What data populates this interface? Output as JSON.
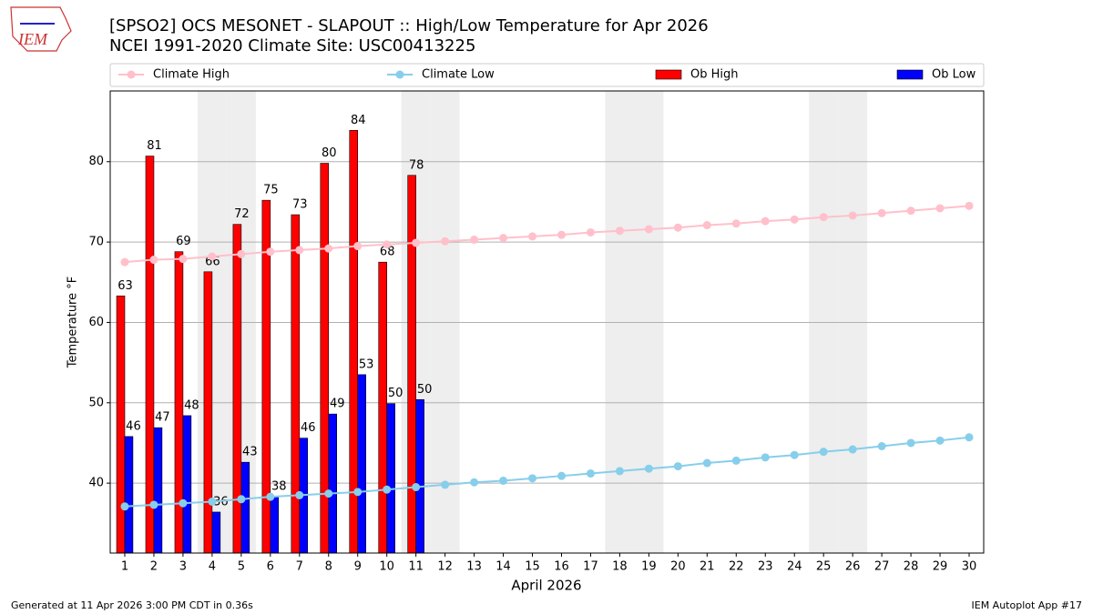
{
  "chart_data": {
    "type": "bar",
    "title": "[SPSO2] OCS MESONET - SLAPOUT :: High/Low Temperature for Apr 2026",
    "subtitle": "NCEI 1991-2020 Climate Site: USC00413225",
    "xlabel": "April 2026",
    "ylabel": "Temperature °F",
    "footer_left": "Generated at 11 Apr 2026 3:00 PM CDT in 0.36s",
    "footer_right": "IEM Autoplot App #17",
    "logo": "IEM",
    "x": [
      1,
      2,
      3,
      4,
      5,
      6,
      7,
      8,
      9,
      10,
      11,
      12,
      13,
      14,
      15,
      16,
      17,
      18,
      19,
      20,
      21,
      22,
      23,
      24,
      25,
      26,
      27,
      28,
      29,
      30
    ],
    "xlim": [
      0.5,
      30.5
    ],
    "xticks": [
      1,
      2,
      3,
      4,
      5,
      6,
      7,
      8,
      9,
      10,
      11,
      12,
      13,
      14,
      15,
      16,
      17,
      18,
      19,
      20,
      21,
      22,
      23,
      24,
      25,
      26,
      27,
      28,
      29,
      30
    ],
    "ylim": [
      31.3,
      88.8
    ],
    "yticks": [
      40,
      50,
      60,
      70,
      80
    ],
    "grid": true,
    "highlight_days": [
      4,
      5,
      11,
      12,
      18,
      19,
      25,
      26
    ],
    "series": [
      {
        "name": "Climate High",
        "type": "line",
        "color": "#ffc0cb",
        "values": [
          67.5,
          67.8,
          67.9,
          68.2,
          68.5,
          68.8,
          69.0,
          69.2,
          69.5,
          69.7,
          69.9,
          70.1,
          70.3,
          70.5,
          70.7,
          70.9,
          71.2,
          71.4,
          71.6,
          71.8,
          72.1,
          72.3,
          72.6,
          72.8,
          73.1,
          73.3,
          73.6,
          73.9,
          74.2,
          74.5
        ]
      },
      {
        "name": "Climate Low",
        "type": "line",
        "color": "#87ceeb",
        "values": [
          37.1,
          37.3,
          37.5,
          37.7,
          38.0,
          38.3,
          38.5,
          38.7,
          38.9,
          39.2,
          39.5,
          39.8,
          40.1,
          40.3,
          40.6,
          40.9,
          41.2,
          41.5,
          41.8,
          42.1,
          42.5,
          42.8,
          43.2,
          43.5,
          43.9,
          44.2,
          44.6,
          45.0,
          45.3,
          45.7
        ]
      },
      {
        "name": "Ob High",
        "type": "bar",
        "color": "#ff0000",
        "values": [
          63.3,
          80.7,
          68.8,
          66.3,
          72.2,
          75.2,
          73.4,
          79.8,
          83.9,
          67.5,
          78.3,
          null,
          null,
          null,
          null,
          null,
          null,
          null,
          null,
          null,
          null,
          null,
          null,
          null,
          null,
          null,
          null,
          null,
          null,
          null
        ],
        "value_labels": [
          "63",
          "81",
          "69",
          "66",
          "72",
          "75",
          "73",
          "80",
          "84",
          "68",
          "78",
          null,
          null,
          null,
          null,
          null,
          null,
          null,
          null,
          null,
          null,
          null,
          null,
          null,
          null,
          null,
          null,
          null,
          null,
          null
        ]
      },
      {
        "name": "Ob Low",
        "type": "bar",
        "color": "#0000ff",
        "values": [
          45.8,
          46.9,
          48.4,
          36.4,
          42.6,
          38.3,
          45.6,
          48.6,
          53.5,
          49.9,
          50.4,
          null,
          null,
          null,
          null,
          null,
          null,
          null,
          null,
          null,
          null,
          null,
          null,
          null,
          null,
          null,
          null,
          null,
          null,
          null
        ],
        "value_labels": [
          "46",
          "47",
          "48",
          "36",
          "43",
          "38",
          "46",
          "49",
          "53",
          "50",
          "50",
          null,
          null,
          null,
          null,
          null,
          null,
          null,
          null,
          null,
          null,
          null,
          null,
          null,
          null,
          null,
          null,
          null,
          null,
          null
        ]
      }
    ]
  }
}
